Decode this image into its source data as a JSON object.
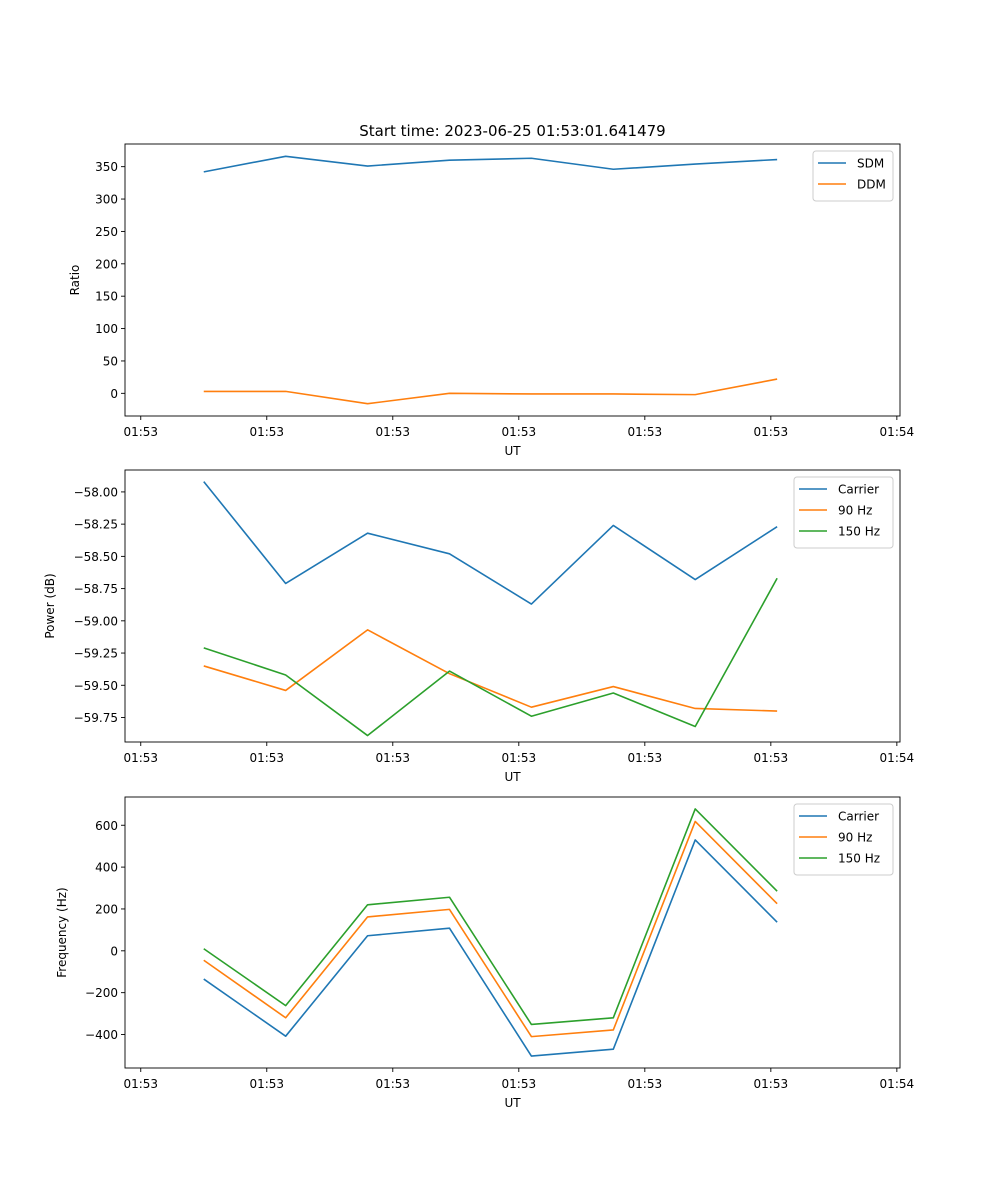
{
  "figure_title": "Start time: 2023-06-25 01:53:01.641479",
  "colors": {
    "blue": "#1f77b4",
    "orange": "#ff7f0e",
    "green": "#2ca02c"
  },
  "chart_data": [
    {
      "type": "line",
      "title": "Start time: 2023-06-25 01:53:01.641479",
      "xlabel": "UT",
      "ylabel": "Ratio",
      "x_tick_labels": [
        "01:53",
        "01:53",
        "01:53",
        "01:53",
        "01:53",
        "01:53",
        "01:54"
      ],
      "x_ticks": [
        0,
        2,
        4,
        6,
        8,
        10,
        12
      ],
      "x": [
        1,
        2.3,
        3.6,
        4.9,
        6.2,
        7.5,
        8.8,
        10.1
      ],
      "xlim": [
        -0.25,
        12.05
      ],
      "ylim": [
        -35,
        385
      ],
      "y_ticks": [
        0,
        50,
        100,
        150,
        200,
        250,
        300,
        350
      ],
      "legend_position": "top-right",
      "series": [
        {
          "name": "SDM",
          "color": "#1f77b4",
          "values": [
            342,
            366,
            351,
            360,
            363,
            346,
            354,
            361
          ]
        },
        {
          "name": "DDM",
          "color": "#ff7f0e",
          "values": [
            3,
            3,
            -16,
            0,
            -1,
            -1,
            -2,
            22
          ]
        }
      ]
    },
    {
      "type": "line",
      "xlabel": "UT",
      "ylabel": "Power (dB)",
      "x_tick_labels": [
        "01:53",
        "01:53",
        "01:53",
        "01:53",
        "01:53",
        "01:53",
        "01:54"
      ],
      "x_ticks": [
        0,
        2,
        4,
        6,
        8,
        10,
        12
      ],
      "x": [
        1,
        2.3,
        3.6,
        4.9,
        6.2,
        7.5,
        8.8,
        10.1
      ],
      "xlim": [
        -0.25,
        12.05
      ],
      "ylim": [
        -59.94,
        -57.83
      ],
      "y_ticks": [
        -59.75,
        -59.5,
        -59.25,
        -59.0,
        -58.75,
        -58.5,
        -58.25,
        -58.0
      ],
      "y_tick_labels": [
        "−59.75",
        "−59.50",
        "−59.25",
        "−59.00",
        "−58.75",
        "−58.50",
        "−58.25",
        "−58.00"
      ],
      "legend_position": "top-right",
      "series": [
        {
          "name": "Carrier",
          "color": "#1f77b4",
          "values": [
            -57.92,
            -58.71,
            -58.32,
            -58.48,
            -58.87,
            -58.26,
            -58.68,
            -58.27
          ]
        },
        {
          "name": "90 Hz",
          "color": "#ff7f0e",
          "values": [
            -59.35,
            -59.54,
            -59.07,
            -59.41,
            -59.67,
            -59.51,
            -59.68,
            -59.7
          ]
        },
        {
          "name": "150 Hz",
          "color": "#2ca02c",
          "values": [
            -59.21,
            -59.42,
            -59.89,
            -59.39,
            -59.74,
            -59.56,
            -59.82,
            -58.67
          ]
        }
      ]
    },
    {
      "type": "line",
      "xlabel": "UT",
      "ylabel": "Frequency (Hz)",
      "x_tick_labels": [
        "01:53",
        "01:53",
        "01:53",
        "01:53",
        "01:53",
        "01:53",
        "01:54"
      ],
      "x_ticks": [
        0,
        2,
        4,
        6,
        8,
        10,
        12
      ],
      "x": [
        1,
        2.3,
        3.6,
        4.9,
        6.2,
        7.5,
        8.8,
        10.1
      ],
      "xlim": [
        -0.25,
        12.05
      ],
      "ylim": [
        -560,
        735
      ],
      "y_ticks": [
        -400,
        -200,
        0,
        200,
        400,
        600
      ],
      "y_tick_labels": [
        "−400",
        "−200",
        "0",
        "200",
        "400",
        "600"
      ],
      "legend_position": "top-right",
      "series": [
        {
          "name": "Carrier",
          "color": "#1f77b4",
          "values": [
            -135,
            -408,
            72,
            108,
            -503,
            -470,
            530,
            137
          ]
        },
        {
          "name": "90 Hz",
          "color": "#ff7f0e",
          "values": [
            -45,
            -320,
            162,
            198,
            -410,
            -378,
            618,
            225
          ]
        },
        {
          "name": "150 Hz",
          "color": "#2ca02c",
          "values": [
            10,
            -262,
            220,
            256,
            -352,
            -320,
            678,
            285
          ]
        }
      ]
    }
  ]
}
